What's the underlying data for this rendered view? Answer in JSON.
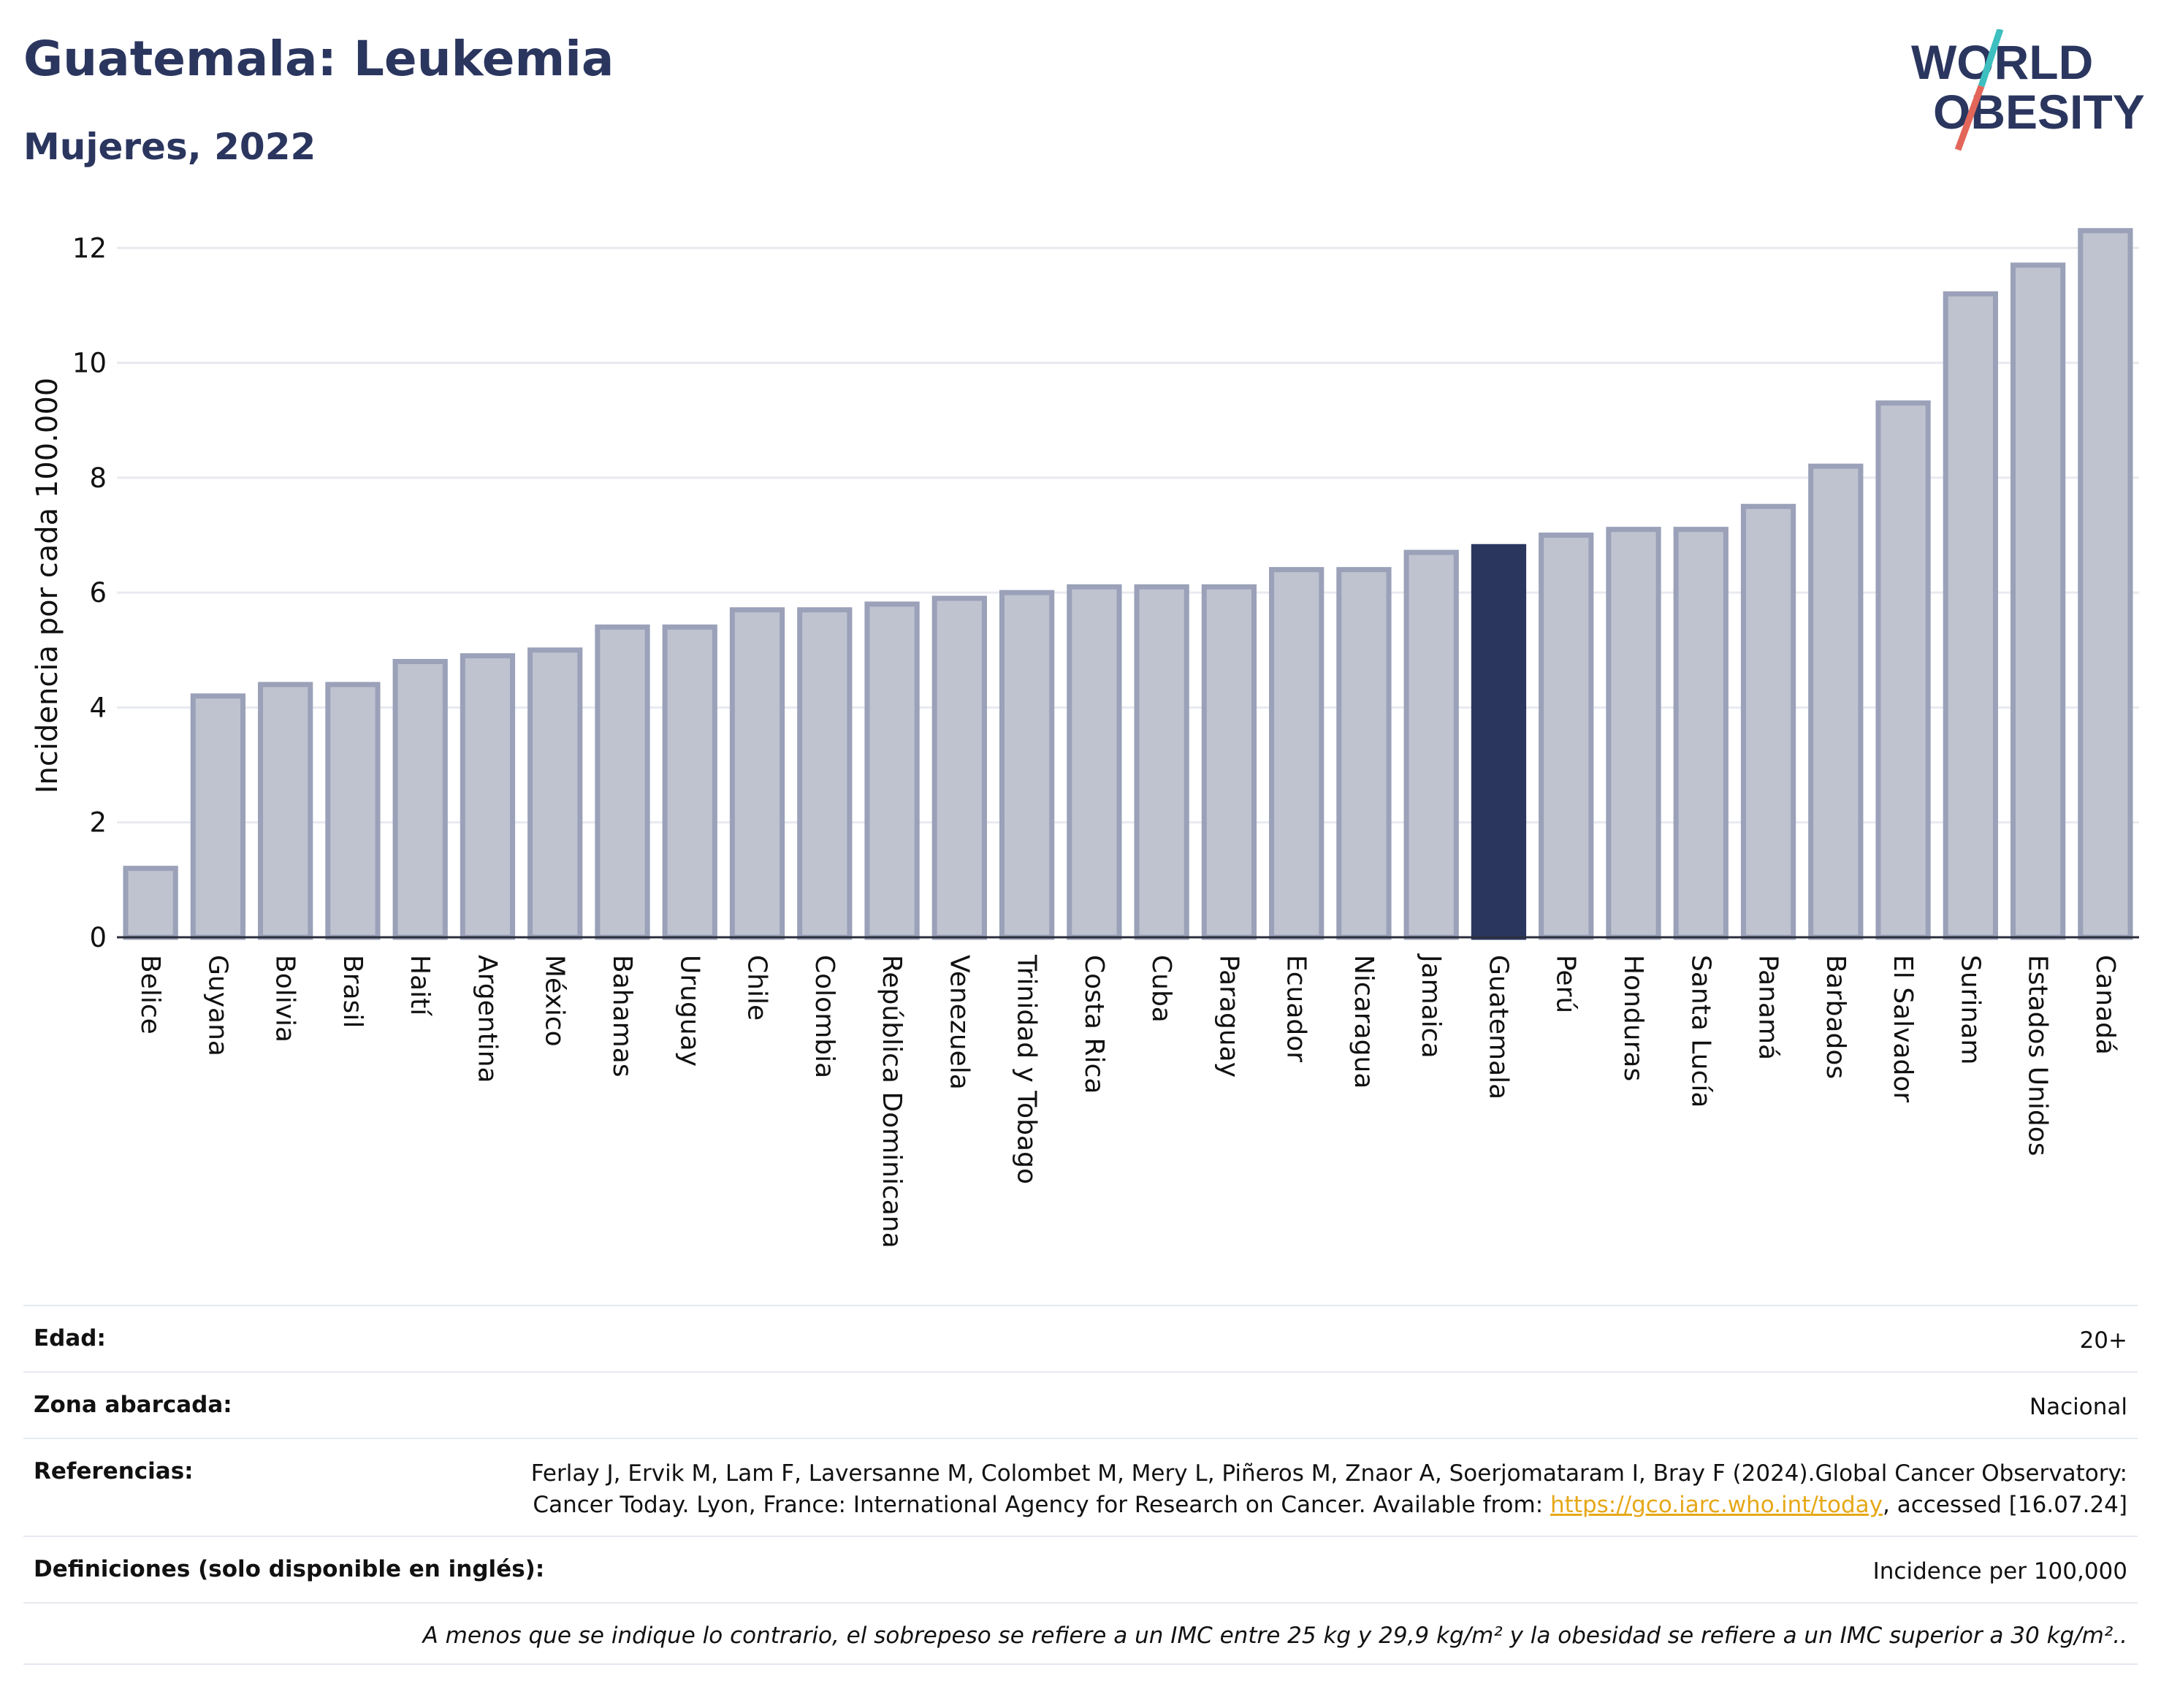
{
  "header": {
    "title": "Guatemala: Leukemia",
    "subtitle": "Mujeres, 2022"
  },
  "logo": {
    "line1": "WORLD",
    "line2": "OBESITY"
  },
  "colors": {
    "bar": "#bfc3d0",
    "bar_border": "#9aa1b8",
    "highlight": "#2b365f",
    "grid": "#e8eaf0",
    "logo_navy": "#2b365f",
    "logo_teal": "#3dbfc0",
    "logo_coral": "#e2675a"
  },
  "chart_data": {
    "type": "bar",
    "ylabel": "Incidencia por cada 100.000",
    "ylim": [
      0,
      12.5
    ],
    "yticks": [
      0,
      2,
      4,
      6,
      8,
      10,
      12
    ],
    "grid": true,
    "highlight": "Guatemala",
    "categories": [
      "Belice",
      "Guyana",
      "Bolivia",
      "Brasil",
      "Haití",
      "Argentina",
      "México",
      "Bahamas",
      "Uruguay",
      "Chile",
      "Colombia",
      "República Dominicana",
      "Venezuela",
      "Trinidad y Tobago",
      "Costa Rica",
      "Cuba",
      "Paraguay",
      "Ecuador",
      "Nicaragua",
      "Jamaica",
      "Guatemala",
      "Perú",
      "Honduras",
      "Santa Lucía",
      "Panamá",
      "Barbados",
      "El Salvador",
      "Surinam",
      "Estados Unidos",
      "Canadá"
    ],
    "values": [
      1.2,
      4.2,
      4.4,
      4.4,
      4.8,
      4.9,
      5.0,
      5.4,
      5.4,
      5.7,
      5.7,
      5.8,
      5.9,
      6.0,
      6.1,
      6.1,
      6.1,
      6.4,
      6.4,
      6.7,
      6.8,
      7.0,
      7.1,
      7.1,
      7.5,
      8.2,
      9.3,
      11.2,
      11.7,
      12.3
    ]
  },
  "meta": {
    "age_label": "Edad:",
    "age_value": "20+",
    "area_label": "Zona abarcada:",
    "area_value": "Nacional",
    "ref_label": "Referencias:",
    "ref_text_1": "Ferlay J, Ervik M, Lam F, Laversanne M, Colombet M, Mery L, Piñeros M, Znaor A, Soerjomataram I, Bray F (2024).Global Cancer Observatory: Cancer Today. Lyon, France: International Agency for Research on Cancer. Available from: ",
    "ref_link": "https://gco.iarc.who.int/today",
    "ref_text_2": ", accessed [16.07.24]",
    "def_label": "Definiciones (solo disponible en inglés):",
    "def_value": "Incidence per 100,000",
    "note": "A menos que se indique lo contrario, el sobrepeso se refiere a un IMC entre 25 kg y 29,9 kg/m² y la obesidad se refiere a un IMC superior a 30 kg/m².."
  }
}
